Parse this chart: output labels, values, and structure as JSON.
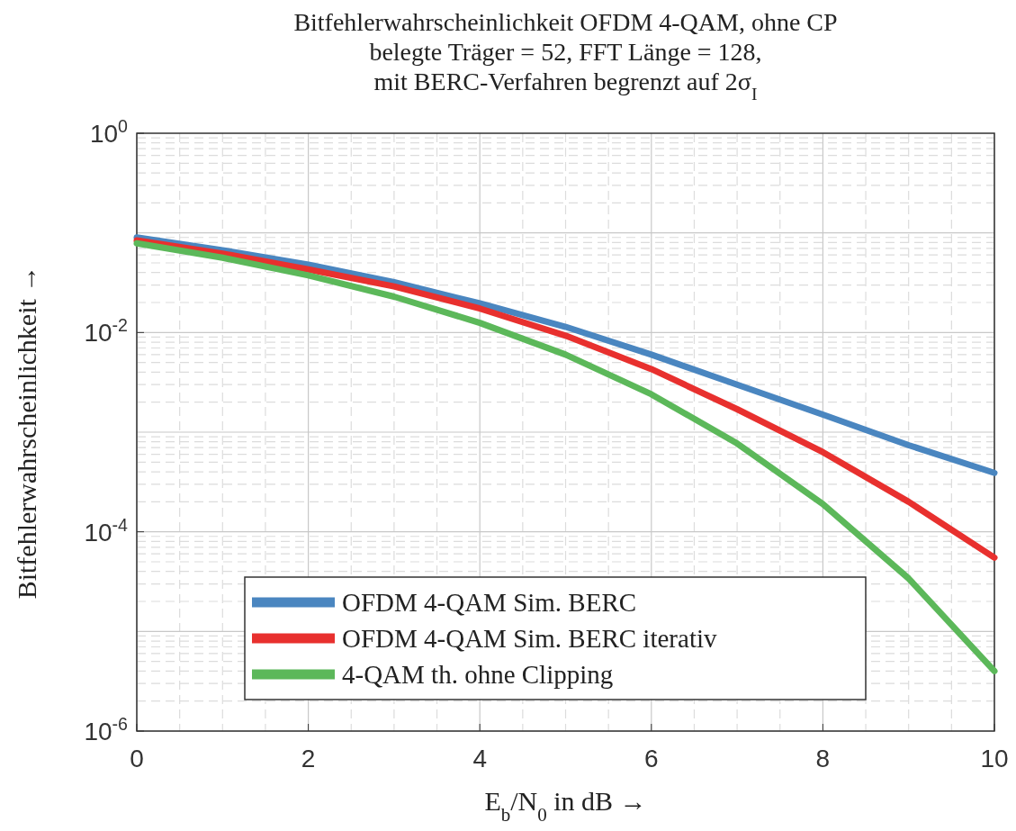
{
  "chart_data": {
    "type": "line",
    "title": "Bitfehlerwahrscheinlichkeit OFDM 4-QAM, ohne CP\nbelegte Träger = 52, FFT Länge = 128,\nmit BERC-Verfahren begrenzt auf 2σ$_{I}$",
    "xlabel": "E$_{b}$/N$_{0}$ in dB →",
    "ylabel": "Bitfehlerwahrscheinlichkeit →",
    "x": [
      0,
      1,
      2,
      3,
      4,
      5,
      6,
      7,
      8,
      9,
      10
    ],
    "series": [
      {
        "name": "OFDM 4-QAM Sim. BERC",
        "color": "#4a86c0",
        "values": [
          0.09,
          0.067,
          0.048,
          0.032,
          0.0196,
          0.0114,
          0.006,
          0.003,
          0.0015,
          0.00074,
          0.00039
        ]
      },
      {
        "name": "OFDM 4-QAM Sim. BERC iterativ",
        "color": "#e8302e",
        "values": [
          0.084,
          0.062,
          0.043,
          0.029,
          0.0174,
          0.0093,
          0.0043,
          0.0017,
          0.00063,
          0.0002,
          5.5e-05
        ]
      },
      {
        "name": "4-QAM th. ohne Clipping",
        "color": "#5cb85a",
        "values": [
          0.0786,
          0.0563,
          0.0375,
          0.0229,
          0.0125,
          0.006,
          0.0024,
          0.00077,
          0.00019,
          3.4e-05,
          4e-06
        ]
      }
    ],
    "log": "y",
    "xlim": [
      0,
      10
    ],
    "ylim": [
      1e-06,
      1
    ],
    "xticks": [
      0,
      2,
      4,
      6,
      8,
      10
    ],
    "yticks": [
      {
        "value": 1e-06,
        "label": "10$^{-6}$"
      },
      {
        "value": 0.0001,
        "label": "10$^{-4}$"
      },
      {
        "value": 0.01,
        "label": "10$^{-2}$"
      },
      {
        "value": 1,
        "label": "10$^{0}$"
      }
    ],
    "grid": true,
    "legend": "bottom left",
    "line_style": "solid",
    "marker": "none"
  }
}
